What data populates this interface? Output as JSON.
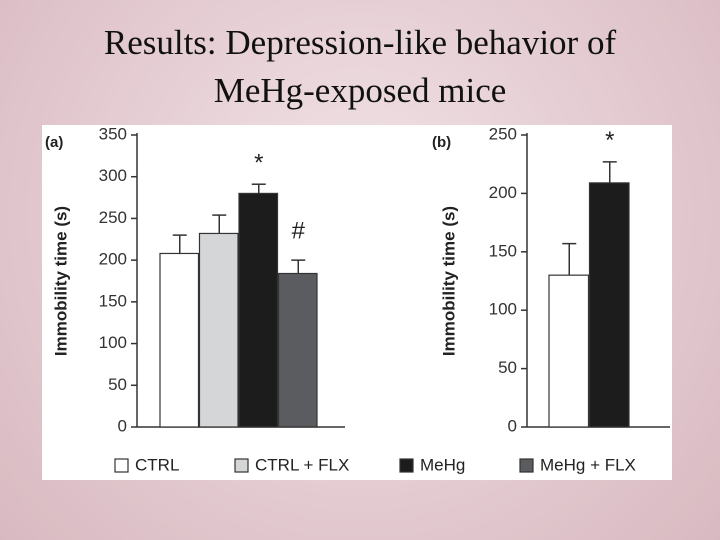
{
  "title_lines": [
    "Results: Depression-like behavior of",
    "MeHg-exposed mice"
  ],
  "chart_data": [
    {
      "type": "bar",
      "panel_label": "(a)",
      "ylabel": "Immobility time (s)",
      "ylim": [
        0,
        350
      ],
      "yticks": [
        0,
        50,
        100,
        150,
        200,
        250,
        300,
        350
      ],
      "series": [
        {
          "name": "CTRL",
          "color": "#ffffff",
          "values": [
            208
          ],
          "errors": [
            22
          ]
        },
        {
          "name": "CTRL + FLX",
          "color": "#d4d6d8",
          "values": [
            232
          ],
          "errors": [
            22
          ]
        },
        {
          "name": "MeHg",
          "color": "#1c1c1c",
          "values": [
            280
          ],
          "errors": [
            11
          ]
        },
        {
          "name": "MeHg + FLX",
          "color": "#5a5c60",
          "values": [
            184
          ],
          "errors": [
            16
          ]
        }
      ],
      "annotations": [
        {
          "series": 2,
          "text": "*"
        },
        {
          "series": 3,
          "text": "#"
        }
      ]
    },
    {
      "type": "bar",
      "panel_label": "(b)",
      "ylabel": "Immobility time (s)",
      "ylim": [
        0,
        250
      ],
      "yticks": [
        0,
        50,
        100,
        150,
        200,
        250
      ],
      "values": [
        130,
        209
      ],
      "errors": [
        27,
        18
      ],
      "colors": [
        "#ffffff",
        "#1c1c1c"
      ],
      "annotations": [
        {
          "index": 1,
          "text": "*"
        }
      ]
    }
  ]
}
